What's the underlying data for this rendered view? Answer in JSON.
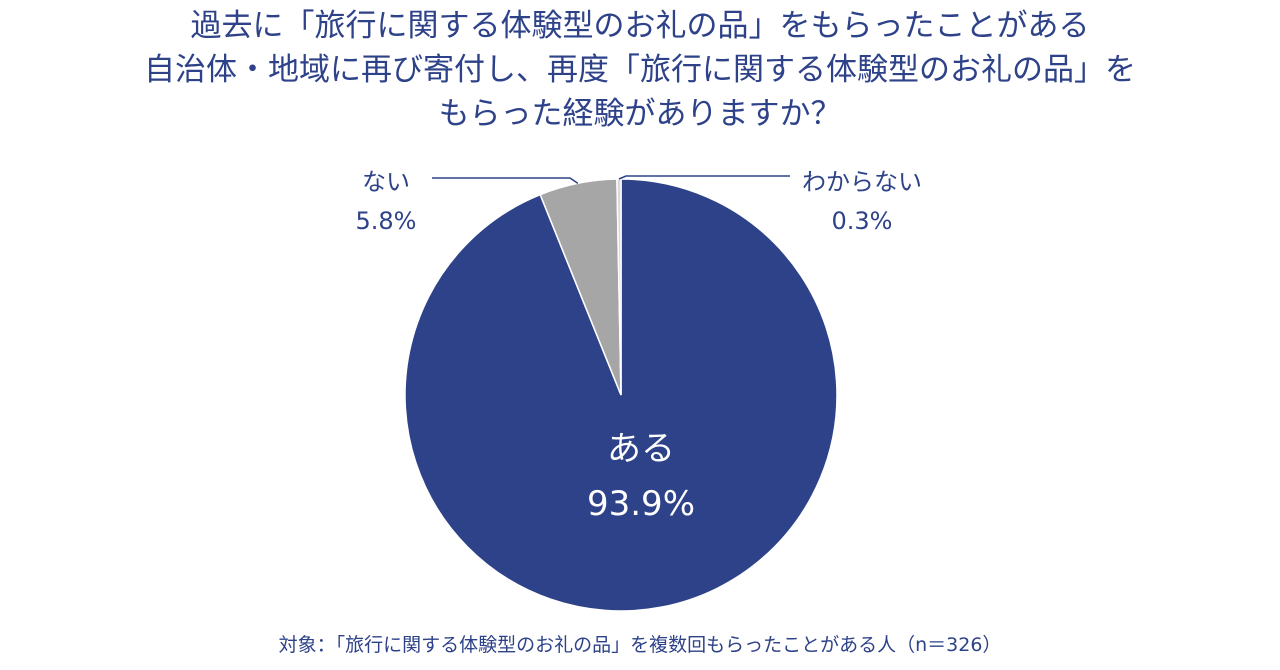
{
  "title": {
    "line1": "過去に「旅行に関する体験型のお礼の品」をもらったことがある",
    "line2": "自治体・地域に再び寄付し、再度「旅行に関する体験型のお礼の品」を",
    "line3": "もらった経験がありますか？"
  },
  "chart_data": {
    "type": "pie",
    "start_angle_deg": 0,
    "direction": "clockwise",
    "slices": [
      {
        "label": "ある",
        "value": 93.9,
        "value_label": "93.9%",
        "color": "#2e4289",
        "label_placement": "inside"
      },
      {
        "label": "ない",
        "value": 5.8,
        "value_label": "5.8%",
        "color": "#a6a6a6",
        "label_placement": "outside-left"
      },
      {
        "label": "わからない",
        "value": 0.3,
        "value_label": "0.3%",
        "color": "#d9d9d9",
        "label_placement": "outside-right"
      }
    ]
  },
  "footnote": "対象：「旅行に関する体験型のお礼の品」を複数回もらったことがある人（n＝326）"
}
